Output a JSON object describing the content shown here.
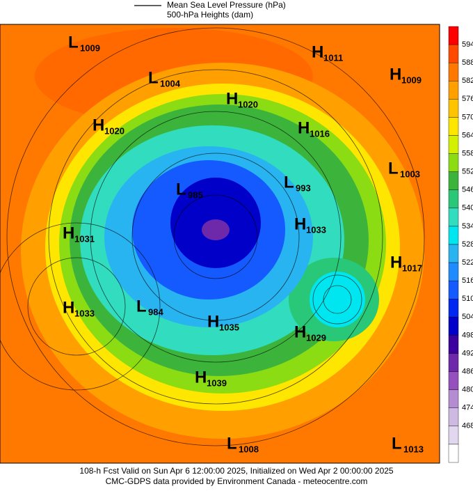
{
  "legend": {
    "items": [
      "Mean Sea Level Pressure (hPa)",
      "500-hPa Heights (dam)"
    ]
  },
  "colorbar": {
    "labels": [
      594,
      588,
      582,
      576,
      570,
      564,
      558,
      552,
      546,
      540,
      534,
      528,
      522,
      516,
      510,
      504,
      498,
      492,
      486,
      480,
      474,
      468
    ],
    "colors": [
      "#ff0000",
      "#ff4a00",
      "#ff7800",
      "#ffa000",
      "#ffc400",
      "#ffe600",
      "#d2f000",
      "#8cdc14",
      "#3cb43c",
      "#28c878",
      "#32dcbe",
      "#00e6f0",
      "#28b4f0",
      "#1e8cff",
      "#145aff",
      "#0028f0",
      "#0000c8",
      "#3c00a0",
      "#6e28aa",
      "#9650be",
      "#b48cd2",
      "#cdb9e1",
      "#e1d7ef",
      "#ffffff"
    ]
  },
  "centers": [
    {
      "kind": "L",
      "value": 1009
    },
    {
      "kind": "L",
      "value": 1004
    },
    {
      "kind": "H",
      "value": 1011
    },
    {
      "kind": "H",
      "value": 1009
    },
    {
      "kind": "H",
      "value": 1020
    },
    {
      "kind": "H",
      "value": 1020
    },
    {
      "kind": "H",
      "value": 1016
    },
    {
      "kind": "L",
      "value": 1003
    },
    {
      "kind": "L",
      "value": 993
    },
    {
      "kind": "L",
      "value": 985
    },
    {
      "kind": "H",
      "value": 1031
    },
    {
      "kind": "H",
      "value": 1033
    },
    {
      "kind": "H",
      "value": 1033
    },
    {
      "kind": "H",
      "value": 1017
    },
    {
      "kind": "L",
      "value": 984
    },
    {
      "kind": "H",
      "value": 1035
    },
    {
      "kind": "H",
      "value": 1029
    },
    {
      "kind": "H",
      "value": 1039
    },
    {
      "kind": "L",
      "value": 1008
    },
    {
      "kind": "L",
      "value": 1013
    }
  ],
  "footer": [
    "108-h Fcst Valid on Sun Apr  6 12:00:00 2025, Initialized on Wed Apr  2 00:00:00 2025",
    "CMC-GDPS data provided by Environment Canada - meteocentre.com"
  ]
}
